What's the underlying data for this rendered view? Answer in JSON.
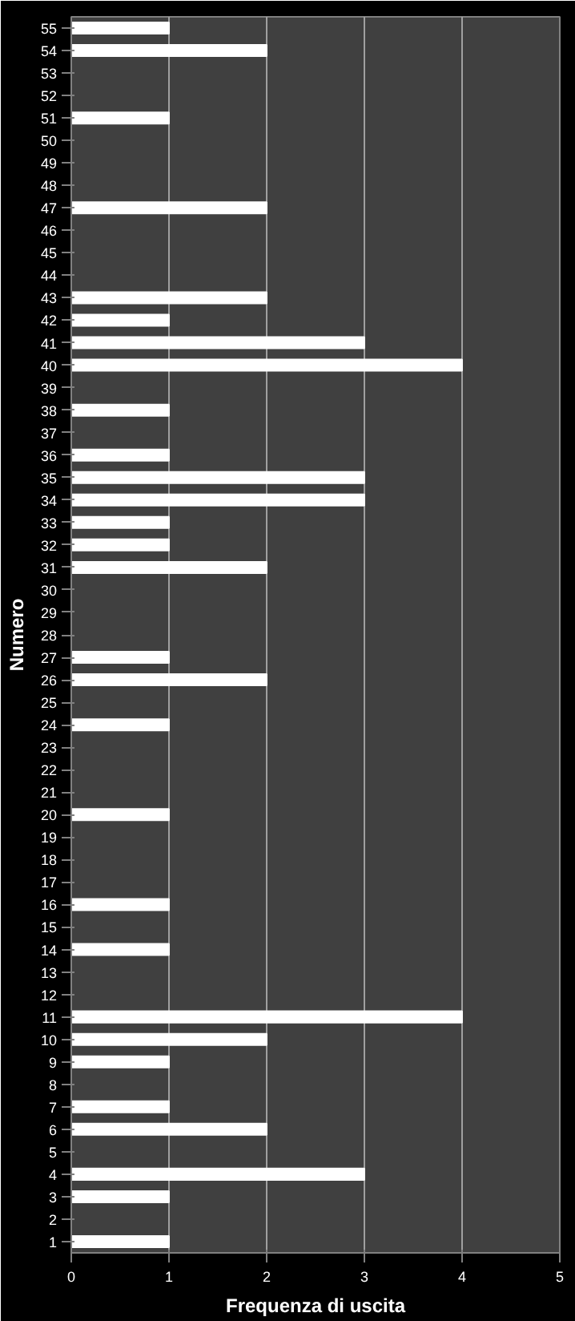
{
  "chart_data": {
    "type": "bar",
    "orientation": "horizontal",
    "xlabel": "Frequenza di uscita",
    "ylabel": "Numero",
    "categories": [
      "55",
      "54",
      "53",
      "52",
      "51",
      "50",
      "49",
      "48",
      "47",
      "46",
      "45",
      "44",
      "43",
      "42",
      "41",
      "40",
      "39",
      "38",
      "37",
      "36",
      "35",
      "34",
      "33",
      "32",
      "31",
      "30",
      "29",
      "28",
      "27",
      "26",
      "25",
      "24",
      "23",
      "22",
      "21",
      "20",
      "19",
      "18",
      "17",
      "16",
      "15",
      "14",
      "13",
      "12",
      "11",
      "10",
      "9",
      "8",
      "7",
      "6",
      "5",
      "4",
      "3",
      "2",
      "1"
    ],
    "values": [
      1,
      2,
      0,
      0,
      1,
      0,
      0,
      0,
      2,
      0,
      0,
      0,
      2,
      1,
      3,
      4,
      0,
      1,
      0,
      1,
      3,
      3,
      1,
      1,
      2,
      0,
      0,
      0,
      1,
      2,
      0,
      1,
      0,
      0,
      0,
      1,
      0,
      0,
      0,
      1,
      0,
      1,
      0,
      0,
      4,
      2,
      1,
      0,
      1,
      2,
      0,
      3,
      1,
      0,
      1
    ],
    "color": "#ffffff",
    "xlim": [
      0,
      5
    ],
    "xticks": [
      0,
      1,
      2,
      3,
      4,
      5
    ],
    "grid": "x"
  }
}
